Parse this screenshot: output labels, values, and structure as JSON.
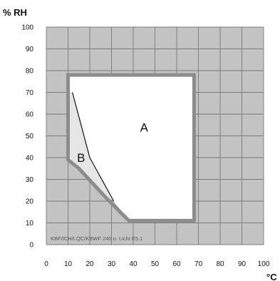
{
  "chart_data": {
    "type": "area",
    "ylabel": "% RH",
    "xlabel": "°C",
    "xlim": [
      0,
      100
    ],
    "ylim": [
      0,
      100
    ],
    "x_ticks": [
      0,
      10,
      20,
      30,
      40,
      50,
      60,
      70,
      80,
      90,
      100
    ],
    "y_ticks": [
      0,
      10,
      20,
      30,
      40,
      50,
      60,
      70,
      80,
      90,
      100
    ],
    "grid": true,
    "annotation": "KBF/ICH/LQC/KBWF 240 o. Licht E5.1",
    "regions": [
      {
        "name": "A",
        "fill": "#ffffff",
        "points": [
          [
            10,
            78
          ],
          [
            68,
            78
          ],
          [
            68,
            11
          ],
          [
            38,
            11
          ],
          [
            31,
            20
          ],
          [
            20,
            40
          ],
          [
            12,
            70
          ],
          [
            10,
            70
          ]
        ]
      },
      {
        "name": "B",
        "fill": "#e6e6e6",
        "points": [
          [
            12,
            70
          ],
          [
            20,
            40
          ],
          [
            31,
            20
          ],
          [
            26,
            23
          ],
          [
            15,
            35
          ],
          [
            10,
            39
          ],
          [
            10,
            70
          ]
        ]
      }
    ],
    "envelope": [
      [
        10,
        78
      ],
      [
        68,
        78
      ],
      [
        68,
        11
      ],
      [
        38,
        11
      ],
      [
        28,
        21
      ],
      [
        15,
        35
      ],
      [
        10,
        39
      ],
      [
        10,
        78
      ]
    ],
    "divider": [
      [
        12,
        70
      ],
      [
        20,
        40
      ],
      [
        31,
        20
      ]
    ],
    "colors": {
      "background": "#c3c3c3",
      "grid": "#7a7a7a",
      "envelope": "#8c8c8c",
      "divider": "#111111"
    }
  }
}
